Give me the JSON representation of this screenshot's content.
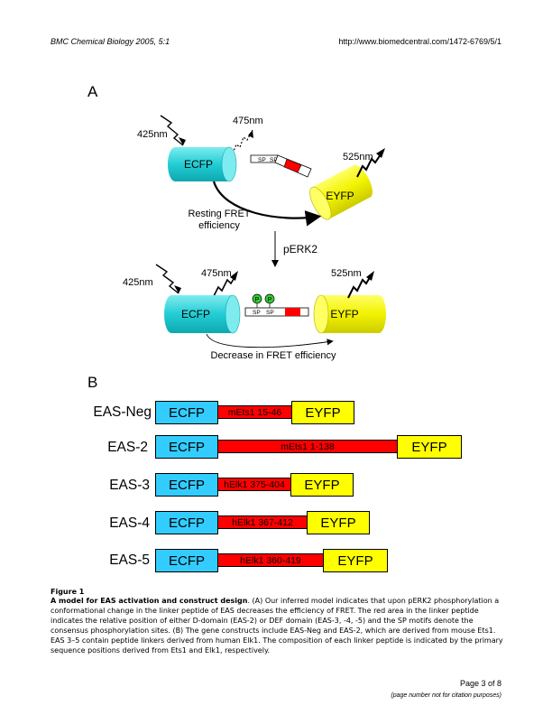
{
  "header": {
    "journal": "BMC Chemical Biology",
    "year_volume": "2005, 5:1",
    "url": "http://www.biomedcentral.com/1472-6769/5/1"
  },
  "panel_a": {
    "label": "A",
    "top": {
      "excitation": "425nm",
      "ecfp_emission": "475nm",
      "eyfp_emission": "525nm",
      "donor": "ECFP",
      "acceptor": "EYFP",
      "linker_sp1": "SP",
      "linker_sp2": "SP",
      "fret_text_line1": "Resting FRET",
      "fret_text_line2": "efficiency"
    },
    "transition": "pERK2",
    "bottom": {
      "excitation": "425nm",
      "ecfp_emission": "475nm",
      "eyfp_emission": "525nm",
      "donor": "ECFP",
      "acceptor": "EYFP",
      "linker_sp1": "SP",
      "linker_sp2": "SP",
      "phospho1": "P",
      "phospho2": "P",
      "fret_text": "Decrease in FRET efficiency"
    }
  },
  "panel_b": {
    "label": "B",
    "constructs": [
      {
        "name": "EAS-Neg",
        "donor": "ECFP",
        "linker": "mEts1 15-46",
        "acceptor": "EYFP"
      },
      {
        "name": "EAS-2",
        "donor": "ECFP",
        "linker": "mEts1 1-138",
        "acceptor": "EYFP"
      },
      {
        "name": "EAS-3",
        "donor": "ECFP",
        "linker": "hElk1 375-404",
        "acceptor": "EYFP"
      },
      {
        "name": "EAS-4",
        "donor": "ECFP",
        "linker": "hElk1 367-412",
        "acceptor": "EYFP"
      },
      {
        "name": "EAS-5",
        "donor": "ECFP",
        "linker": "hElk1 360-419",
        "acceptor": "EYFP"
      }
    ]
  },
  "caption": {
    "figure_label": "Figure 1",
    "title": "A model for EAS activation and construct design",
    "body": ". (A) Our inferred model indicates that upon pERK2 phosphorylation a conformational change in the linker peptide of EAS decreases the efficiency of FRET. The red area in the linker peptide indicates the relative position of either D-domain (EAS-2) or DEF domain (EAS-3, -4, -5) and the SP motifs denote the consensus phosphorylation sites. (B) The gene constructs include EAS-Neg and EAS-2, which are derived from mouse Ets1. EAS 3–5 contain peptide linkers derived from human Elk1. The composition of each linker peptide is indicated by the primary sequence positions derived from Ets1 and Elk1, respectively."
  },
  "footer": {
    "page": "Page 3 of 8",
    "note": "(page number not for citation purposes)"
  },
  "colors": {
    "ecfp": "#33ccff",
    "eyfp": "#ffff00",
    "linker_domain": "#ff0000",
    "phospho": "#33cc33"
  }
}
